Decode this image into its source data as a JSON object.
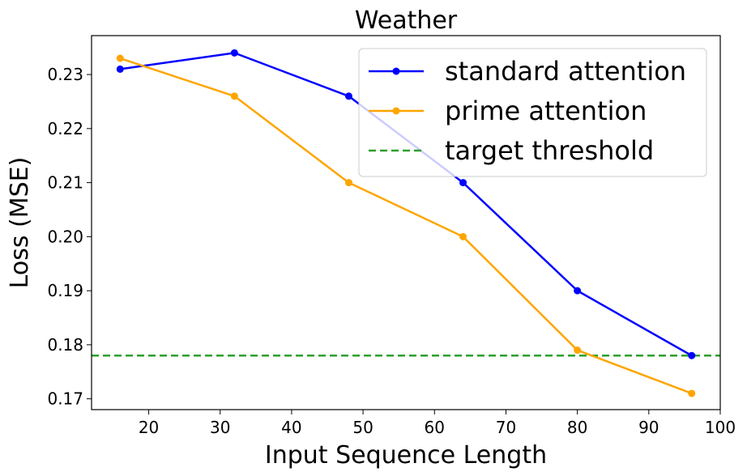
{
  "chart_data": {
    "type": "line",
    "title": "Weather",
    "xlabel": "Input Sequence Length",
    "ylabel": "Loss (MSE)",
    "xlim": [
      12,
      100
    ],
    "ylim": [
      0.168,
      0.2372
    ],
    "xticks": [
      20,
      30,
      40,
      50,
      60,
      70,
      80,
      90,
      100
    ],
    "xtick_labels": [
      "20",
      "30",
      "40",
      "50",
      "60",
      "70",
      "80",
      "90",
      "100"
    ],
    "yticks": [
      0.17,
      0.18,
      0.19,
      0.2,
      0.21,
      0.22,
      0.23
    ],
    "ytick_labels": [
      "0.17",
      "0.18",
      "0.19",
      "0.20",
      "0.21",
      "0.22",
      "0.23"
    ],
    "grid": false,
    "legend_position": "top-right",
    "x": [
      16,
      32,
      48,
      64,
      80,
      96
    ],
    "series": [
      {
        "name": "standard attention",
        "color": "#0000ff",
        "marker": "circle",
        "values": [
          0.231,
          0.234,
          0.226,
          0.21,
          0.19,
          0.178
        ]
      },
      {
        "name": "prime attention",
        "color": "#ffa500",
        "marker": "circle",
        "values": [
          0.233,
          0.226,
          0.21,
          0.2,
          0.179,
          0.171
        ]
      }
    ],
    "reference_lines": [
      {
        "name": "target threshold",
        "orientation": "horizontal",
        "value": 0.178,
        "color": "#2ca02c",
        "style": "dashed"
      }
    ]
  }
}
